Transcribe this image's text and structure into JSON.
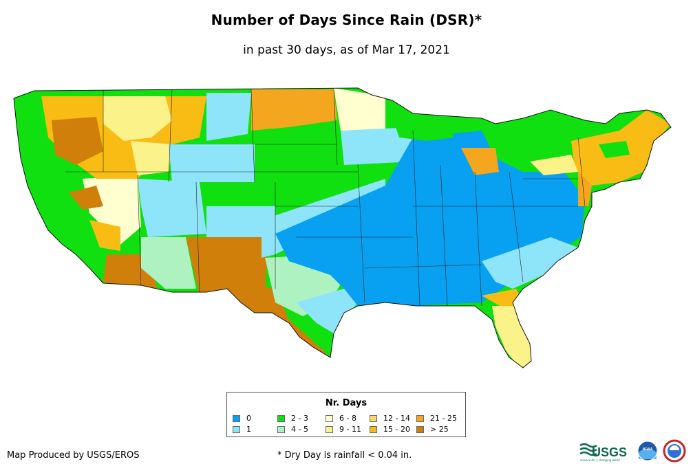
{
  "header": {
    "title": "Number of Days Since Rain (DSR)*",
    "subtitle": "in past 30 days, as of Mar 17, 2021"
  },
  "legend": {
    "title": "Nr. Days",
    "items": [
      {
        "label": "0",
        "color": "#08a0f0"
      },
      {
        "label": "1",
        "color": "#8ee5fa"
      },
      {
        "label": "2 - 3",
        "color": "#10df10"
      },
      {
        "label": "4 - 5",
        "color": "#aef2c2"
      },
      {
        "label": "6 - 8",
        "color": "#ffffd0"
      },
      {
        "label": "9 - 11",
        "color": "#fbf28a"
      },
      {
        "label": "12 - 14",
        "color": "#f8d86a"
      },
      {
        "label": "15 - 20",
        "color": "#f8bc14"
      },
      {
        "label": "21 - 25",
        "color": "#f4a61e"
      },
      {
        "label": "> 25",
        "color": "#cf7f0a"
      }
    ]
  },
  "footer": {
    "credit": "Map Produced by USGS/EROS",
    "note": "* Dry Day is rainfall < 0.04 in."
  },
  "logos": {
    "usgs": "USGS",
    "usgs_tagline": "science for a changing world",
    "noaa": "NOAA",
    "nws_icon": "nws-logo-icon"
  }
}
